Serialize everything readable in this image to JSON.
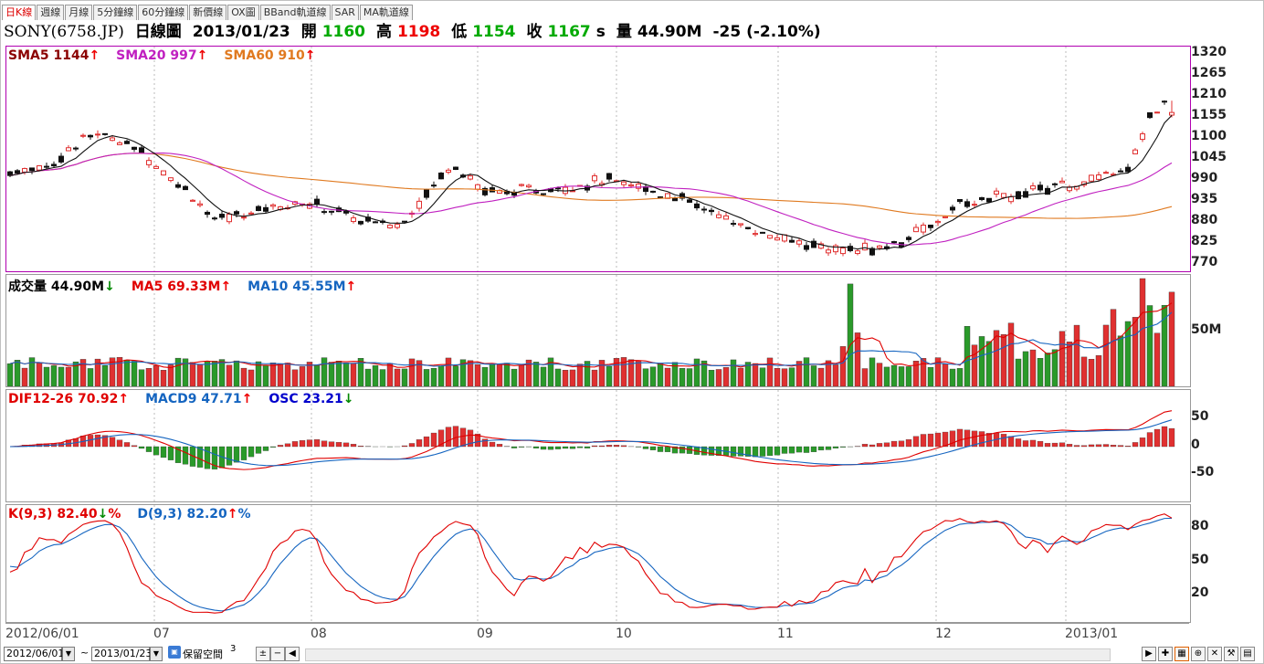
{
  "tabs": [
    "日K線",
    "週線",
    "月線",
    "5分鐘線",
    "60分鐘線",
    "新價線",
    "OX圖",
    "BBand軌道線",
    "SAR",
    "MA軌道線"
  ],
  "info": {
    "symbol": "SONY(6758.JP)",
    "chart": "日線圖",
    "date": "2013/01/23",
    "open_label": "開",
    "open": "1160",
    "high_label": "高",
    "high": "1198",
    "low_label": "低",
    "low": "1154",
    "close_label": "收",
    "close": "1167",
    "close_flag": "s",
    "vol_label": "量",
    "vol": "44.90M",
    "change": "-25 (-2.10%)"
  },
  "colors": {
    "up": "#e03030",
    "down": "#111111",
    "ma5": "#111111",
    "ma20": "#c020c0",
    "ma60": "#e07a20",
    "vol_up": "#e03030",
    "vol_down": "#2a9a2a",
    "vol_ma5": "#e00000",
    "vol_ma10": "#1565c0",
    "dif": "#e00000",
    "macd": "#1565c0",
    "k": "#e00000",
    "d": "#1565c0"
  },
  "legends": {
    "price": [
      {
        "label": "SMA5 1144",
        "arrow": "↑",
        "color": "#8b0000"
      },
      {
        "label": "SMA20 997",
        "arrow": "↑",
        "color": "#c020c0"
      },
      {
        "label": "SMA60 910",
        "arrow": "↑",
        "color": "#e07a20"
      }
    ],
    "volume": [
      {
        "label": "成交量 44.90M",
        "arrow": "↓",
        "color": "#000000"
      },
      {
        "label": "MA5 69.33M",
        "arrow": "↑",
        "color": "#e00000"
      },
      {
        "label": "MA10 45.55M",
        "arrow": "↑",
        "color": "#1565c0"
      }
    ],
    "macd": [
      {
        "label": "DIF12-26 70.92",
        "arrow": "↑",
        "color": "#e00000"
      },
      {
        "label": "MACD9 47.71",
        "arrow": "↑",
        "color": "#1565c0"
      },
      {
        "label": "OSC 23.21",
        "arrow": "↓",
        "color": "#0000cc"
      }
    ],
    "kd": [
      {
        "label": "K(9,3) 82.40",
        "arrow": "↓",
        "suffix": "%",
        "color": "#e00000"
      },
      {
        "label": "D(9,3) 82.20",
        "arrow": "↑",
        "suffix": "%",
        "color": "#1565c0"
      }
    ]
  },
  "yaxes": {
    "price": [
      "1320",
      "1265",
      "1210",
      "1155",
      "1100",
      "1045",
      "990",
      "935",
      "880",
      "825",
      "770"
    ],
    "volume": [
      "50M"
    ],
    "macd": [
      "50",
      "0",
      "-50"
    ],
    "kd": [
      "80",
      "50",
      "20"
    ]
  },
  "xaxis": [
    "2012/06/01",
    "07",
    "08",
    "09",
    "10",
    "11",
    "12",
    "2013/01"
  ],
  "bottom": {
    "start": "2012/06/01",
    "end": "2013/01/23",
    "keep_space": "保留空間",
    "keep_value": "3"
  },
  "chart_data": {
    "type": "candlestick",
    "title": "SONY(6758.JP) 日線圖",
    "price_range": [
      750,
      1340
    ],
    "monthly_close_approx": {
      "2012/06": 1005,
      "2012/07": 920,
      "2012/08": 915,
      "2012/09": 880,
      "2012/10": 975,
      "2012/11": 910,
      "2012/12": 810,
      "2013/01": 1167
    },
    "last_bar": {
      "date": "2013/01/23",
      "open": 1160,
      "high": 1198,
      "low": 1154,
      "close": 1167,
      "volume": "44.90M"
    },
    "indicators": {
      "SMA5": 1144,
      "SMA20": 997,
      "SMA60": 910,
      "VolMA5": "69.33M",
      "VolMA10": "45.55M",
      "DIF12-26": 70.92,
      "MACD9": 47.71,
      "OSC": 23.21,
      "K": 82.4,
      "D": 82.2
    }
  }
}
